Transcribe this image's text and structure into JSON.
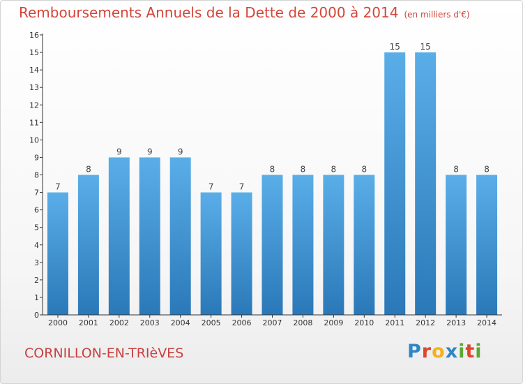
{
  "header": {
    "title": "Remboursements Annuels de la Dette de 2000 à 2014",
    "unit": "(en milliers d'€)"
  },
  "footer": {
    "commune": "CORNILLON-EN-TRIèVES",
    "logo_letters": [
      {
        "ch": "P",
        "color": "#2e86c8"
      },
      {
        "ch": "r",
        "color": "#e0452c"
      },
      {
        "ch": "o",
        "color": "#f3b21c"
      },
      {
        "ch": "x",
        "color": "#2e86c8"
      },
      {
        "ch": "i",
        "color": "#5aa832"
      },
      {
        "ch": "t",
        "color": "#e0452c"
      },
      {
        "ch": "i",
        "color": "#5aa832"
      }
    ]
  },
  "chart_data": {
    "type": "bar",
    "categories": [
      "2000",
      "2001",
      "2002",
      "2003",
      "2004",
      "2005",
      "2006",
      "2007",
      "2008",
      "2009",
      "2010",
      "2011",
      "2012",
      "2013",
      "2014"
    ],
    "values": [
      7,
      8,
      9,
      9,
      9,
      7,
      7,
      8,
      8,
      8,
      8,
      15,
      15,
      8,
      8
    ],
    "data_labels": [
      "7",
      "8",
      "9",
      "9",
      "9",
      "7",
      "7",
      "8",
      "8",
      "8",
      "8",
      "15",
      "15",
      "8",
      "8"
    ],
    "ylim": [
      0,
      16
    ],
    "yticks": [
      "0",
      "1",
      "2",
      "3",
      "4",
      "5",
      "6",
      "7",
      "8",
      "9",
      "10",
      "11",
      "12",
      "13",
      "14",
      "15",
      "16"
    ],
    "grid": false,
    "colors": {
      "bar_top": "#5aaee8",
      "bar_bottom": "#2a78b8",
      "axis": "#333333",
      "label": "#444444"
    }
  }
}
